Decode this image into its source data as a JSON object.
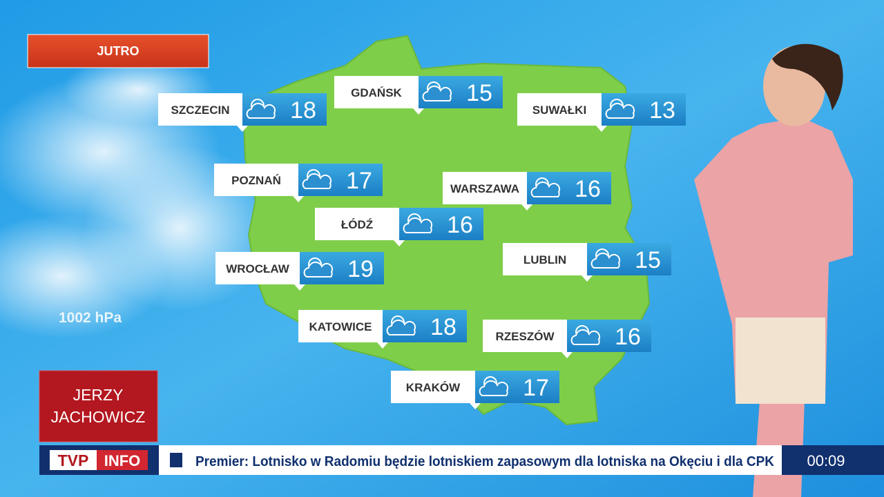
{
  "header": {
    "label": "JUTRO"
  },
  "map": {
    "pressure_label": "1002 hPa",
    "cities": [
      {
        "name": "SZCZECIN",
        "temp": 18
      },
      {
        "name": "GDAŃSK",
        "temp": 15
      },
      {
        "name": "SUWAŁKI",
        "temp": 13
      },
      {
        "name": "POZNAŃ",
        "temp": 17
      },
      {
        "name": "WARSZAWA",
        "temp": 16
      },
      {
        "name": "ŁÓDŹ",
        "temp": 16
      },
      {
        "name": "LUBLIN",
        "temp": 15
      },
      {
        "name": "WROCŁAW",
        "temp": 19
      },
      {
        "name": "KATOWICE",
        "temp": 18
      },
      {
        "name": "RZESZÓW",
        "temp": 16
      },
      {
        "name": "KRAKÓW",
        "temp": 17
      }
    ]
  },
  "presenter": {
    "name_lines": [
      "JERZY",
      "JACHOWICZ"
    ]
  },
  "ticker": {
    "logo": [
      "TVP",
      "INFO"
    ],
    "text": "Premier: Lotnisko w Radomiu będzie lotniskiem zapasowym dla lotniska na Okęciu i dla CPK",
    "time": "00:09"
  }
}
